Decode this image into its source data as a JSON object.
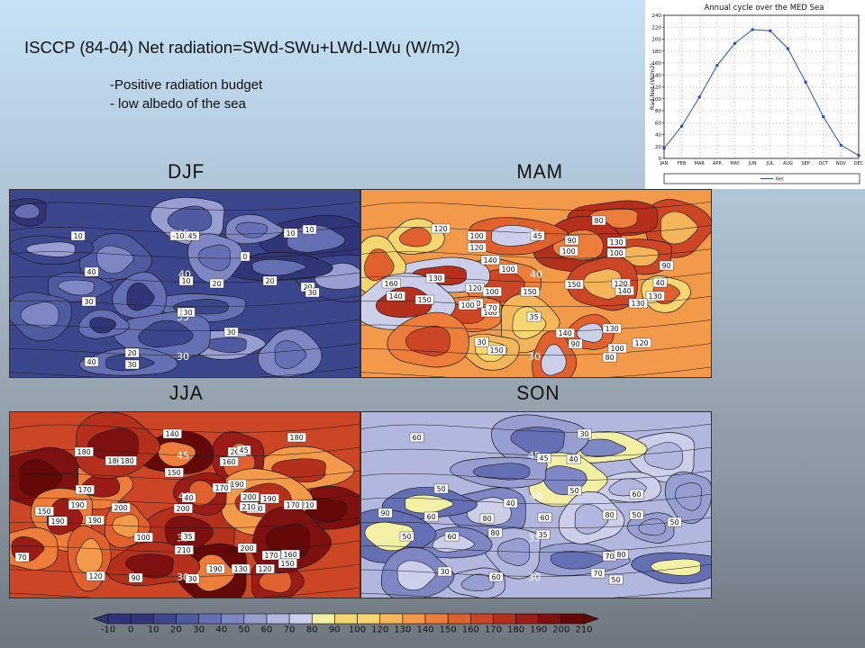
{
  "slide": {
    "title": "ISCCP (84-04)  Net radiation=SWd-SWu+LWd-LWu  (W/m2)",
    "notes": [
      "-Positive radiation budget",
      "- low albedo of the sea"
    ]
  },
  "colors": {
    "line": "#1f4fd6",
    "ramp": [
      "#2f3577",
      "#3c468c",
      "#4f5aa0",
      "#6570b4",
      "#7e87c4",
      "#979fd2",
      "#b1b7df",
      "#cbcfe9",
      "#f3f0a6",
      "#f6d671",
      "#f5b55a",
      "#f29a4a",
      "#ec7d3a",
      "#e0612e",
      "#cc4525",
      "#b52f1d",
      "#9b1c16",
      "#7f1010",
      "#650808"
    ]
  },
  "chart_data": [
    {
      "type": "line",
      "title": "Annual cycle over the MED Sea",
      "ylabel": "Rad Net (W/m2)",
      "xlabel": "",
      "categories": [
        "JAN",
        "FEB",
        "MAR",
        "APR",
        "MAY",
        "JUN",
        "JUL",
        "AUG",
        "SEP",
        "OCT",
        "NOV",
        "DEC"
      ],
      "ylim": [
        0,
        240
      ],
      "yticks": [
        0,
        20,
        40,
        60,
        80,
        100,
        120,
        140,
        160,
        180,
        200,
        220,
        240
      ],
      "grid": true,
      "legend": "bottom",
      "series": [
        {
          "name": "Net",
          "values": [
            17,
            54,
            103,
            156,
            193,
            216,
            214,
            184,
            128,
            70,
            22,
            5
          ]
        }
      ]
    },
    {
      "type": "heatmap",
      "panels": [
        {
          "season": "DJF",
          "labels": [
            "10",
            "-10",
            "45",
            "10",
            "0",
            "10",
            "20",
            "40",
            "10",
            "20",
            "30",
            "20",
            "30",
            "35",
            "30",
            "20",
            "30",
            "40",
            "30"
          ]
        },
        {
          "season": "MAM",
          "labels": [
            "80",
            "120",
            "100",
            "45",
            "90",
            "130",
            "120",
            "100",
            "100",
            "90",
            "140",
            "100",
            "120",
            "160",
            "130",
            "140",
            "150",
            "40",
            "120",
            "140",
            "130",
            "150",
            "100",
            "90",
            "150",
            "35",
            "160",
            "130",
            "100",
            "70",
            "130",
            "140",
            "150",
            "90",
            "100",
            "120",
            "80",
            "30"
          ]
        },
        {
          "season": "JJA",
          "labels": [
            "140",
            "180",
            "180",
            "180",
            "180",
            "200",
            "150",
            "45",
            "160",
            "190",
            "170",
            "40",
            "170",
            "200",
            "150",
            "190",
            "210",
            "170",
            "190",
            "200",
            "200",
            "210",
            "190",
            "190",
            "150",
            "210",
            "35",
            "200",
            "170",
            "160",
            "70",
            "120",
            "90",
            "190",
            "130",
            "120",
            "150",
            "100",
            "30"
          ]
        },
        {
          "season": "SON",
          "labels": [
            "30",
            "60",
            "45",
            "40",
            "50",
            "50",
            "40",
            "60",
            "90",
            "60",
            "80",
            "50",
            "60",
            "80",
            "50",
            "60",
            "80",
            "50",
            "35",
            "70",
            "80",
            "70",
            "50",
            "60",
            "30"
          ]
        }
      ],
      "colorbar": {
        "ticks": [
          "-10",
          "0",
          "10",
          "20",
          "30",
          "40",
          "50",
          "60",
          "70",
          "80",
          "90",
          "100",
          "120",
          "130",
          "140",
          "150",
          "160",
          "170",
          "180",
          "190",
          "200",
          "210"
        ]
      }
    }
  ]
}
